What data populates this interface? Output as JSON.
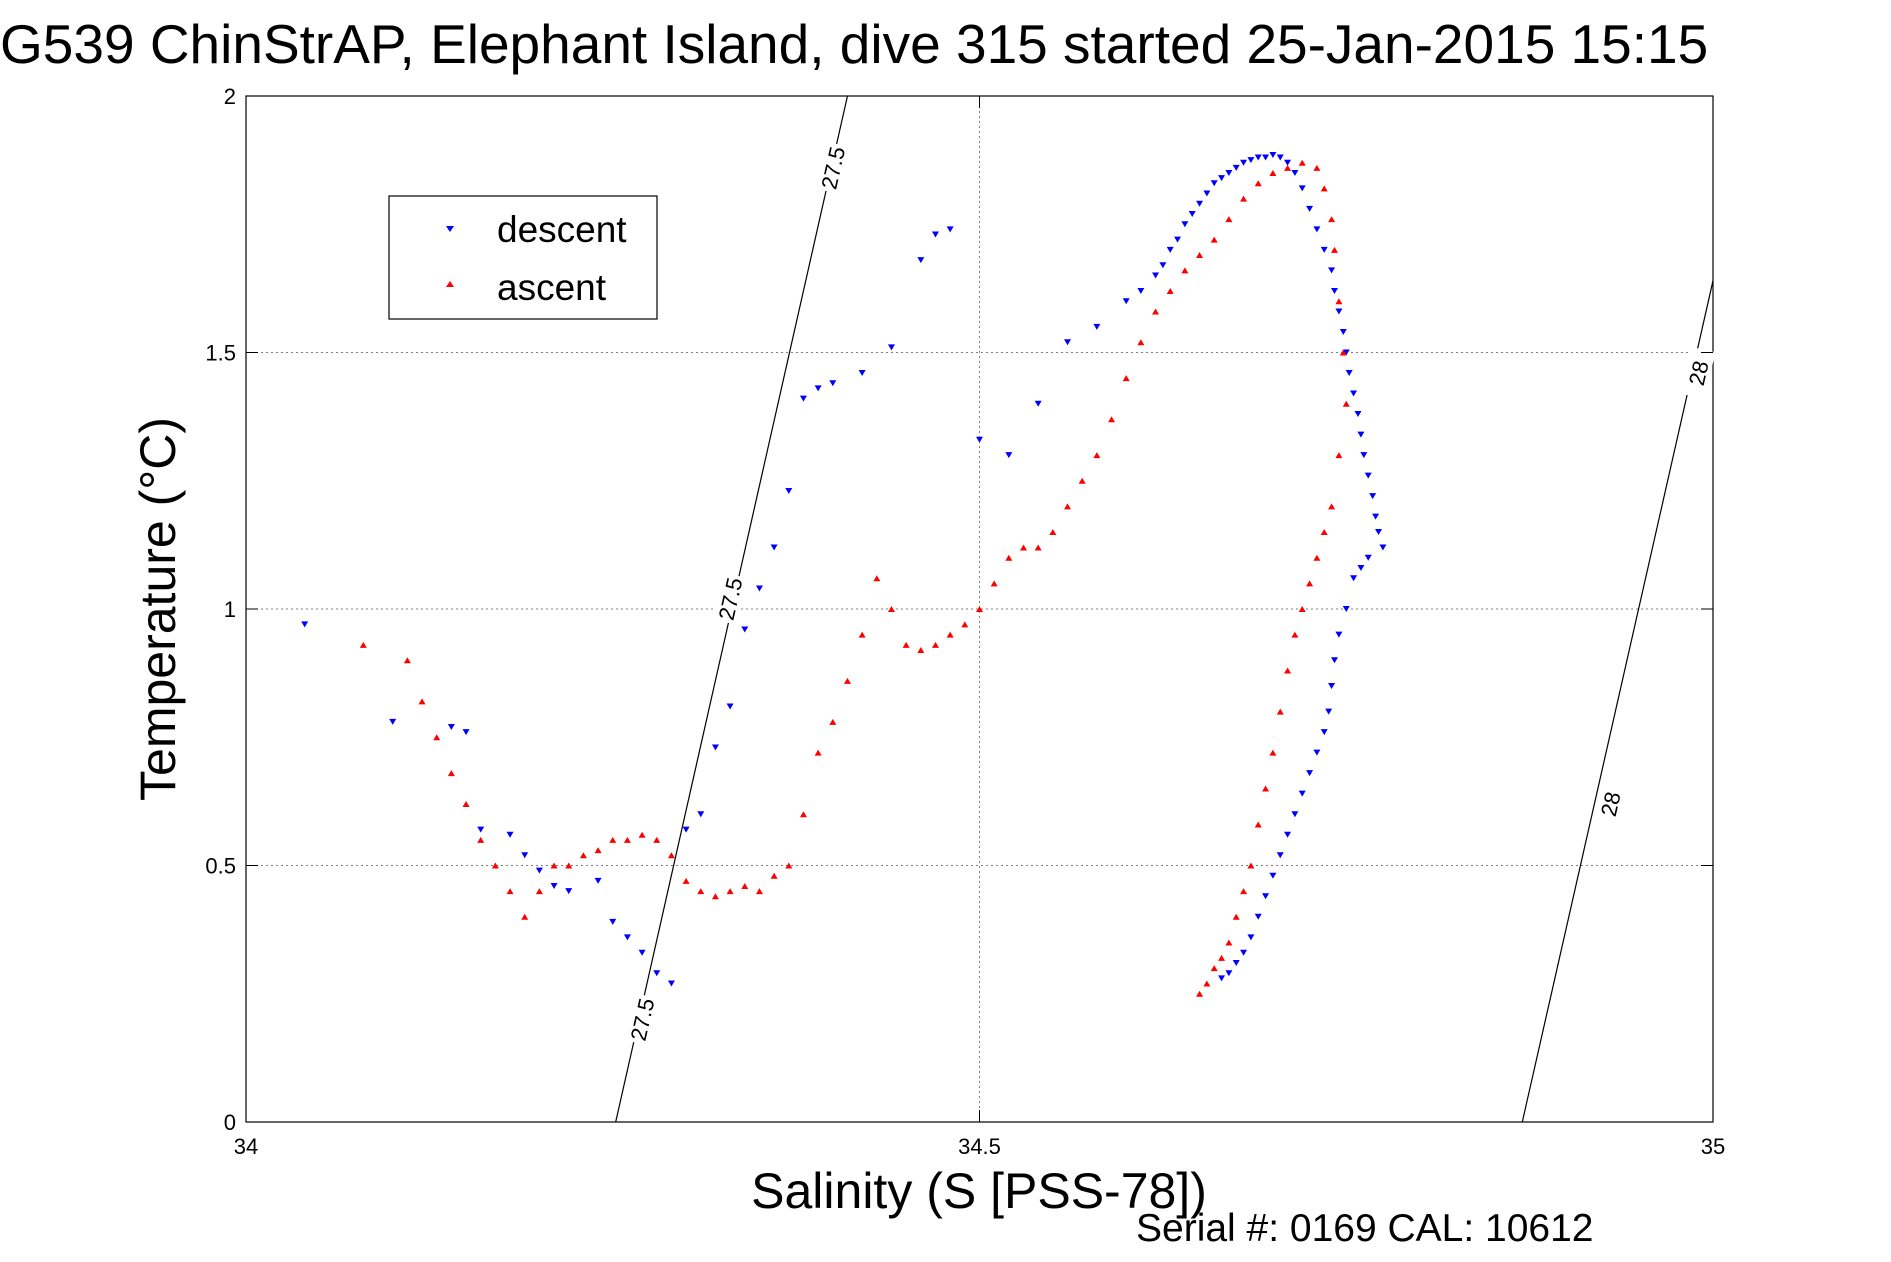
{
  "chart_data": {
    "type": "scatter",
    "title": "G539 ChinStrAP, Elephant Island, dive 315 started 25-Jan-2015 15:15",
    "xlabel": "Salinity (S [PSS-78])",
    "ylabel": "Temperature (°C)",
    "xlim": [
      34,
      35
    ],
    "ylim": [
      0,
      2
    ],
    "xticks": [
      "34",
      "34.5",
      "35"
    ],
    "yticks": [
      "0",
      "0.5",
      "1",
      "1.5",
      "2"
    ],
    "grid": true,
    "legend_position": "top-left",
    "footer": "Serial #: 0169 CAL: 10612",
    "series": [
      {
        "name": "descent",
        "color": "#0000ff",
        "marker": "triangle-down",
        "x": [
          34.04,
          34.1,
          34.14,
          34.15,
          34.16,
          34.18,
          34.19,
          34.2,
          34.21,
          34.22,
          34.24,
          34.25,
          34.26,
          34.27,
          34.28,
          34.29,
          34.3,
          34.31,
          34.32,
          34.33,
          34.34,
          34.35,
          34.36,
          34.37,
          34.38,
          34.39,
          34.4,
          34.42,
          34.44,
          34.46,
          34.47,
          34.48,
          34.5,
          34.52,
          34.54,
          34.56,
          34.58,
          34.6,
          34.61,
          34.62,
          34.625,
          34.63,
          34.635,
          34.64,
          34.645,
          34.65,
          34.655,
          34.66,
          34.665,
          34.67,
          34.675,
          34.68,
          34.685,
          34.69,
          34.695,
          34.7,
          34.705,
          34.71,
          34.715,
          34.72,
          34.725,
          34.73,
          34.735,
          34.74,
          34.742,
          34.745,
          34.748,
          34.75,
          34.752,
          34.755,
          34.758,
          34.76,
          34.762,
          34.765,
          34.768,
          34.77,
          34.772,
          34.775,
          34.765,
          34.76,
          34.755,
          34.75,
          34.745,
          34.742,
          34.74,
          34.738,
          34.735,
          34.73,
          34.725,
          34.72,
          34.715,
          34.71,
          34.705,
          34.7,
          34.695,
          34.69,
          34.685,
          34.68,
          34.675,
          34.67,
          34.665
        ],
        "y": [
          0.97,
          0.78,
          0.77,
          0.76,
          0.57,
          0.56,
          0.52,
          0.49,
          0.46,
          0.45,
          0.47,
          0.39,
          0.36,
          0.33,
          0.29,
          0.27,
          0.57,
          0.6,
          0.73,
          0.81,
          0.96,
          1.04,
          1.12,
          1.23,
          1.41,
          1.43,
          1.44,
          1.46,
          1.51,
          1.68,
          1.73,
          1.74,
          1.33,
          1.3,
          1.4,
          1.52,
          1.55,
          1.6,
          1.62,
          1.65,
          1.67,
          1.7,
          1.72,
          1.75,
          1.77,
          1.79,
          1.81,
          1.83,
          1.84,
          1.85,
          1.86,
          1.87,
          1.875,
          1.88,
          1.88,
          1.885,
          1.88,
          1.87,
          1.85,
          1.82,
          1.78,
          1.74,
          1.7,
          1.66,
          1.62,
          1.58,
          1.54,
          1.5,
          1.46,
          1.42,
          1.38,
          1.34,
          1.3,
          1.26,
          1.22,
          1.18,
          1.15,
          1.12,
          1.1,
          1.08,
          1.06,
          1.0,
          0.95,
          0.9,
          0.85,
          0.8,
          0.76,
          0.72,
          0.68,
          0.64,
          0.6,
          0.56,
          0.52,
          0.48,
          0.44,
          0.4,
          0.36,
          0.33,
          0.31,
          0.29,
          0.28
        ]
      },
      {
        "name": "ascent",
        "color": "#ff0000",
        "marker": "triangle-up",
        "x": [
          34.08,
          34.11,
          34.12,
          34.13,
          34.14,
          34.15,
          34.16,
          34.17,
          34.18,
          34.19,
          34.2,
          34.21,
          34.22,
          34.23,
          34.24,
          34.25,
          34.26,
          34.27,
          34.28,
          34.29,
          34.3,
          34.31,
          34.32,
          34.33,
          34.34,
          34.35,
          34.36,
          34.37,
          34.38,
          34.39,
          34.4,
          34.41,
          34.42,
          34.43,
          34.44,
          34.45,
          34.46,
          34.47,
          34.48,
          34.49,
          34.5,
          34.51,
          34.52,
          34.53,
          34.54,
          34.55,
          34.56,
          34.57,
          34.58,
          34.59,
          34.6,
          34.61,
          34.62,
          34.63,
          34.64,
          34.65,
          34.66,
          34.67,
          34.68,
          34.69,
          34.7,
          34.71,
          34.72,
          34.73,
          34.735,
          34.74,
          34.742,
          34.745,
          34.748,
          34.75,
          34.745,
          34.74,
          34.735,
          34.73,
          34.725,
          34.72,
          34.715,
          34.71,
          34.705,
          34.7,
          34.695,
          34.69,
          34.685,
          34.68,
          34.675,
          34.67,
          34.665,
          34.66,
          34.655,
          34.65
        ],
        "y": [
          0.93,
          0.9,
          0.82,
          0.75,
          0.68,
          0.62,
          0.55,
          0.5,
          0.45,
          0.4,
          0.45,
          0.5,
          0.5,
          0.52,
          0.53,
          0.55,
          0.55,
          0.56,
          0.55,
          0.52,
          0.47,
          0.45,
          0.44,
          0.45,
          0.46,
          0.45,
          0.48,
          0.5,
          0.6,
          0.72,
          0.78,
          0.86,
          0.95,
          1.06,
          1.0,
          0.93,
          0.92,
          0.93,
          0.95,
          0.97,
          1.0,
          1.05,
          1.1,
          1.12,
          1.12,
          1.15,
          1.2,
          1.25,
          1.3,
          1.37,
          1.45,
          1.52,
          1.58,
          1.62,
          1.66,
          1.69,
          1.72,
          1.76,
          1.8,
          1.83,
          1.85,
          1.86,
          1.87,
          1.86,
          1.82,
          1.76,
          1.7,
          1.6,
          1.5,
          1.4,
          1.3,
          1.2,
          1.15,
          1.1,
          1.05,
          1.0,
          0.95,
          0.88,
          0.8,
          0.72,
          0.65,
          0.58,
          0.5,
          0.45,
          0.4,
          0.35,
          0.32,
          0.3,
          0.27,
          0.25
        ]
      }
    ],
    "contours": [
      {
        "label": "27.5",
        "x": [
          34.252,
          34.41
        ],
        "y": [
          0,
          2
        ],
        "label_positions": [
          {
            "x": 34.27,
            "y": 0.2
          },
          {
            "x": 34.33,
            "y": 1.02
          },
          {
            "x": 34.4,
            "y": 1.86
          }
        ]
      },
      {
        "label": "28",
        "x": [
          34.87,
          35.0
        ],
        "y": [
          0,
          1.64
        ],
        "label_positions": [
          {
            "x": 34.93,
            "y": 0.62
          },
          {
            "x": 34.99,
            "y": 1.46
          }
        ]
      }
    ]
  }
}
